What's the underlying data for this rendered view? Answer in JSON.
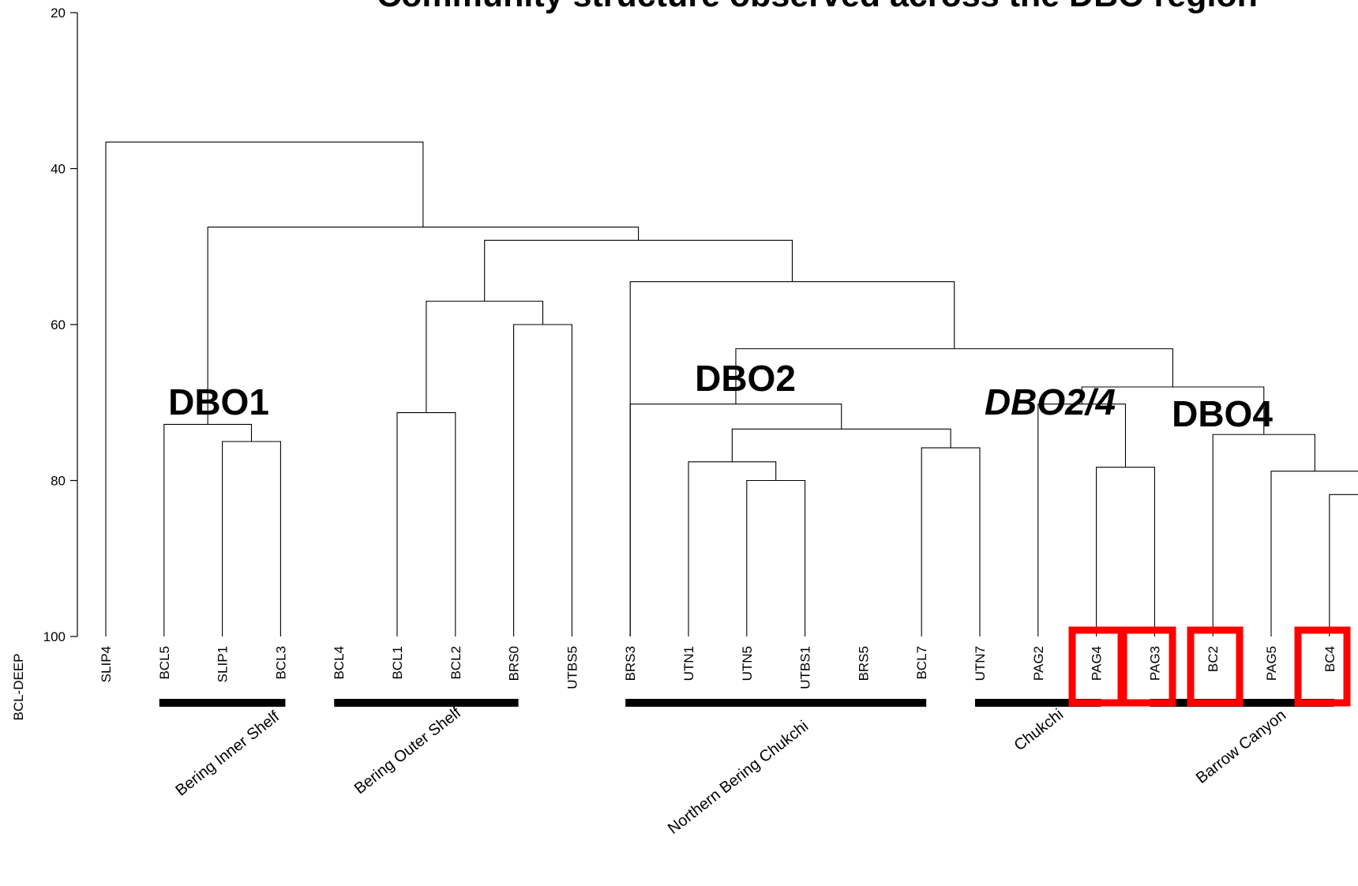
{
  "chart_data": {
    "type": "dendrogram",
    "title": "Community structure observed across the DBO region",
    "ylabel": "BCL-DEEP",
    "ylim": [
      20,
      100
    ],
    "yticks": [
      "20",
      "40",
      "60",
      "80",
      "100"
    ],
    "leaves": [
      "SLIP4",
      "BCL5",
      "SLIP1",
      "BCL3",
      "BCL4",
      "BCL1",
      "BCL2",
      "BRS0",
      "UTBS5",
      "BRS3",
      "UTN1",
      "UTN5",
      "UTBS1",
      "BRS5",
      "BCL7",
      "UTN7",
      "PAG2",
      "PAG4",
      "PAG3",
      "BC2",
      "PAG5",
      "BC4"
    ],
    "merges": [
      {
        "a": "L2",
        "b": "L3",
        "height": 75
      },
      {
        "a": "L1",
        "b": "N0",
        "height": 72.8
      },
      {
        "a": "L5",
        "b": "L6",
        "height": 71.3
      },
      {
        "a": "L7",
        "b": "L8",
        "height": 60
      },
      {
        "a": "N2",
        "b": "N3",
        "height": 57
      },
      {
        "a": "L11",
        "b": "L12",
        "height": 80
      },
      {
        "a": "L10",
        "b": "N5",
        "height": 77.6
      },
      {
        "a": "L14",
        "b": "L15",
        "height": 75.8
      },
      {
        "a": "N6",
        "b": "N7",
        "height": 73.4
      },
      {
        "a": "L9",
        "b": "N8",
        "height": 70.2
      },
      {
        "a": "L17",
        "b": "L18",
        "height": 78.3
      },
      {
        "a": "L16",
        "b": "N10",
        "height": 70.2
      },
      {
        "a": "L21",
        "b": "L22",
        "height": 81.8
      },
      {
        "a": "L20",
        "b": "N12",
        "height": 78.8
      },
      {
        "a": "L19",
        "b": "N13",
        "height": 74.1
      },
      {
        "a": "N11",
        "b": "N14",
        "height": 68
      },
      {
        "a": "N9",
        "b": "N15",
        "height": 63.1
      },
      {
        "a": "L9",
        "b": "N16",
        "height": 54.5
      },
      {
        "a": "N4",
        "b": "N17",
        "height": 49.2
      },
      {
        "a": "N1",
        "b": "N18",
        "height": 47.5
      },
      {
        "a": "L0",
        "b": "N19",
        "height": 36.6
      }
    ],
    "cluster_labels": [
      {
        "text": "DBO1",
        "italic": false
      },
      {
        "text": "DBO2",
        "italic": false
      },
      {
        "text": "DBO2/4",
        "italic": true
      },
      {
        "text": "DBO4",
        "italic": false
      }
    ],
    "groups": [
      {
        "name": "Bering Inner Shelf"
      },
      {
        "name": "Bering Outer Shelf"
      },
      {
        "name": "Northern Bering Chukchi"
      },
      {
        "name": "Chukchi"
      },
      {
        "name": "Barrow Canyon"
      }
    ],
    "colors": {
      "line": "#000000",
      "group_bar": "#000000",
      "highlight_box": "#ff0000"
    }
  }
}
